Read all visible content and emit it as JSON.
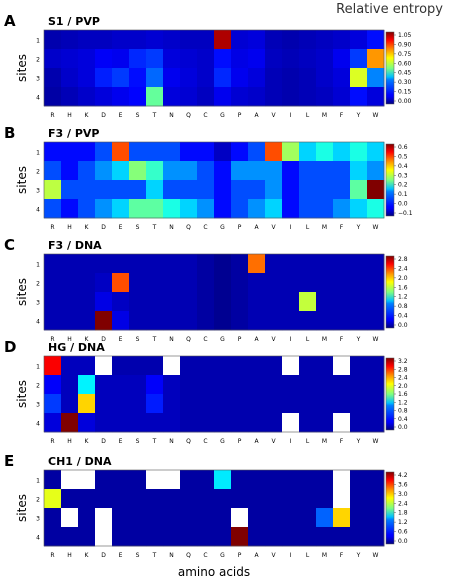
{
  "figure_title": "Relative entropy",
  "chart_data": [
    {
      "panel": "A",
      "title": "S1 / PVP",
      "type": "heatmap",
      "ylabel": "sites",
      "xlabel": "",
      "x": [
        "R",
        "H",
        "K",
        "D",
        "E",
        "S",
        "T",
        "N",
        "Q",
        "C",
        "G",
        "P",
        "A",
        "V",
        "I",
        "L",
        "M",
        "F",
        "Y",
        "W"
      ],
      "y": [
        "1",
        "2",
        "3",
        "4"
      ],
      "vmin": 0,
      "vmax": 1.1,
      "colorbar_ticks": [
        "0.00",
        "0.15",
        "0.30",
        "0.45",
        "0.60",
        "0.75",
        "0.90",
        "1.05"
      ],
      "values": [
        [
          0.05,
          0.06,
          0.07,
          0.07,
          0.08,
          0.08,
          0.09,
          0.08,
          0.07,
          0.07,
          1.05,
          0.09,
          0.1,
          0.06,
          0.05,
          0.06,
          0.07,
          0.08,
          0.1,
          0.15
        ],
        [
          0.08,
          0.09,
          0.1,
          0.13,
          0.12,
          0.18,
          0.2,
          0.1,
          0.09,
          0.08,
          0.15,
          0.11,
          0.12,
          0.07,
          0.06,
          0.07,
          0.08,
          0.12,
          0.2,
          0.8
        ],
        [
          0.05,
          0.08,
          0.1,
          0.17,
          0.2,
          0.15,
          0.25,
          0.12,
          0.1,
          0.08,
          0.18,
          0.12,
          0.1,
          0.06,
          0.05,
          0.06,
          0.08,
          0.1,
          0.65,
          0.28
        ],
        [
          0.04,
          0.06,
          0.08,
          0.1,
          0.12,
          0.14,
          0.52,
          0.1,
          0.09,
          0.07,
          0.12,
          0.09,
          0.08,
          0.06,
          0.05,
          0.06,
          0.07,
          0.09,
          0.15,
          0.1
        ]
      ]
    },
    {
      "panel": "B",
      "title": "F3 / PVP",
      "type": "heatmap",
      "ylabel": "sites",
      "xlabel": "",
      "x": [
        "R",
        "H",
        "K",
        "D",
        "E",
        "S",
        "T",
        "N",
        "Q",
        "C",
        "G",
        "P",
        "A",
        "V",
        "I",
        "L",
        "M",
        "F",
        "Y",
        "W"
      ],
      "y": [
        "1",
        "2",
        "3",
        "4"
      ],
      "vmin": -0.1,
      "vmax": 0.65,
      "colorbar_ticks": [
        "0.6",
        "0.5",
        "0.4",
        "0.3",
        "0.2",
        "0.1",
        "0.0",
        "−0.1"
      ],
      "values": [
        [
          0.0,
          0.0,
          0.0,
          0.05,
          0.5,
          0.05,
          0.05,
          0.05,
          0.0,
          0.0,
          -0.05,
          0.0,
          0.05,
          0.5,
          0.3,
          0.15,
          0.2,
          0.15,
          0.2,
          0.15
        ],
        [
          0.05,
          0.0,
          0.05,
          0.1,
          0.15,
          0.28,
          0.22,
          0.1,
          0.1,
          0.05,
          0.0,
          0.1,
          0.1,
          0.1,
          0.0,
          0.05,
          0.05,
          0.05,
          0.15,
          0.1
        ],
        [
          0.32,
          0.05,
          0.05,
          0.05,
          0.05,
          0.05,
          0.15,
          0.05,
          0.05,
          0.05,
          0.0,
          0.05,
          0.05,
          0.1,
          0.0,
          0.05,
          0.05,
          0.05,
          0.25,
          0.65
        ],
        [
          0.05,
          0.0,
          0.05,
          0.1,
          0.15,
          0.25,
          0.25,
          0.2,
          0.15,
          0.1,
          0.0,
          0.05,
          0.1,
          0.15,
          0.0,
          0.05,
          0.05,
          0.1,
          0.15,
          0.2
        ]
      ]
    },
    {
      "panel": "C",
      "title": "F3 / DNA",
      "type": "heatmap",
      "ylabel": "sites",
      "xlabel": "",
      "x": [
        "R",
        "H",
        "K",
        "D",
        "E",
        "S",
        "T",
        "N",
        "Q",
        "C",
        "G",
        "P",
        "A",
        "V",
        "I",
        "L",
        "M",
        "F",
        "Y",
        "W"
      ],
      "y": [
        "1",
        "2",
        "3",
        "4"
      ],
      "vmin": 0,
      "vmax": 3.0,
      "colorbar_ticks": [
        "0.0",
        "0.4",
        "0.8",
        "1.2",
        "1.6",
        "2.0",
        "2.4",
        "2.8"
      ],
      "values": [
        [
          0.15,
          0.15,
          0.15,
          0.15,
          0.15,
          0.15,
          0.15,
          0.15,
          0.15,
          0.1,
          0.05,
          0.1,
          2.3,
          0.15,
          0.15,
          0.15,
          0.15,
          0.15,
          0.15,
          0.15
        ],
        [
          0.15,
          0.15,
          0.15,
          0.2,
          2.4,
          0.15,
          0.15,
          0.15,
          0.15,
          0.1,
          0.05,
          0.1,
          0.15,
          0.15,
          0.15,
          0.15,
          0.15,
          0.15,
          0.15,
          0.15
        ],
        [
          0.15,
          0.15,
          0.15,
          0.3,
          0.2,
          0.15,
          0.15,
          0.15,
          0.15,
          0.1,
          0.05,
          0.1,
          0.15,
          0.15,
          0.15,
          1.7,
          0.15,
          0.15,
          0.15,
          0.15
        ],
        [
          0.15,
          0.15,
          0.15,
          3.0,
          0.3,
          0.15,
          0.15,
          0.15,
          0.15,
          0.1,
          0.05,
          0.1,
          0.15,
          0.15,
          0.15,
          0.15,
          0.15,
          0.15,
          0.15,
          0.15
        ]
      ]
    },
    {
      "panel": "D",
      "title": "HG / DNA",
      "type": "heatmap",
      "ylabel": "sites",
      "xlabel": "",
      "x": [
        "R",
        "H",
        "K",
        "D",
        "E",
        "S",
        "T",
        "N",
        "Q",
        "C",
        "G",
        "P",
        "A",
        "V",
        "I",
        "L",
        "M",
        "F",
        "Y",
        "W"
      ],
      "y": [
        "1",
        "2",
        "3",
        "4"
      ],
      "vmin": 0,
      "vmax": 3.3,
      "colorbar_ticks": [
        "0.0",
        "0.4",
        "0.8",
        "1.2",
        "1.6",
        "2.0",
        "2.4",
        "2.8",
        "3.2"
      ],
      "values": [
        [
          2.9,
          0.2,
          0.2,
          null,
          0.15,
          0.15,
          0.15,
          null,
          0.15,
          0.15,
          0.15,
          0.15,
          0.15,
          0.15,
          null,
          0.15,
          0.15,
          null,
          0.15,
          0.15
        ],
        [
          0.4,
          0.2,
          1.2,
          0.2,
          0.2,
          0.2,
          0.4,
          0.2,
          0.15,
          0.15,
          0.15,
          0.15,
          0.15,
          0.15,
          0.15,
          0.15,
          0.15,
          0.15,
          0.15,
          0.15
        ],
        [
          0.6,
          0.2,
          2.2,
          0.2,
          0.2,
          0.2,
          0.5,
          0.2,
          0.15,
          0.15,
          0.15,
          0.15,
          0.15,
          0.15,
          0.15,
          0.15,
          0.15,
          0.15,
          0.15,
          0.15
        ],
        [
          0.3,
          3.3,
          0.3,
          0.2,
          0.2,
          0.2,
          0.2,
          0.2,
          0.15,
          0.15,
          0.15,
          0.15,
          0.15,
          0.15,
          null,
          0.15,
          0.15,
          null,
          0.15,
          0.15
        ]
      ]
    },
    {
      "panel": "E",
      "title": "CH1 / DNA",
      "type": "heatmap",
      "ylabel": "sites",
      "xlabel": "amino acids",
      "x": [
        "R",
        "H",
        "K",
        "D",
        "E",
        "S",
        "T",
        "N",
        "Q",
        "C",
        "G",
        "P",
        "A",
        "V",
        "I",
        "L",
        "M",
        "F",
        "Y",
        "W"
      ],
      "y": [
        "1",
        "2",
        "3",
        "4"
      ],
      "vmin": 0,
      "vmax": 4.5,
      "colorbar_ticks": [
        "0.0",
        "0.6",
        "1.2",
        "1.8",
        "2.4",
        "3.0",
        "3.6",
        "4.2"
      ],
      "values": [
        [
          0.15,
          null,
          null,
          0.15,
          0.15,
          0.15,
          null,
          null,
          0.15,
          0.15,
          1.6,
          0.15,
          0.15,
          0.15,
          0.15,
          0.15,
          0.15,
          null,
          0.15,
          0.15
        ],
        [
          2.7,
          0.15,
          0.15,
          0.15,
          0.15,
          0.15,
          0.15,
          0.15,
          0.15,
          0.15,
          0.15,
          0.15,
          0.15,
          0.15,
          0.15,
          0.15,
          0.15,
          null,
          0.15,
          0.15
        ],
        [
          0.15,
          null,
          0.15,
          null,
          0.15,
          0.15,
          0.15,
          0.15,
          0.15,
          0.15,
          0.15,
          null,
          0.15,
          0.15,
          0.15,
          0.15,
          1.0,
          3.0,
          0.15,
          0.15
        ],
        [
          0.15,
          0.15,
          0.15,
          null,
          0.15,
          0.15,
          0.15,
          0.15,
          0.15,
          0.15,
          0.15,
          4.5,
          0.15,
          0.15,
          0.15,
          0.15,
          0.15,
          0.15,
          0.15,
          0.15
        ]
      ]
    }
  ]
}
